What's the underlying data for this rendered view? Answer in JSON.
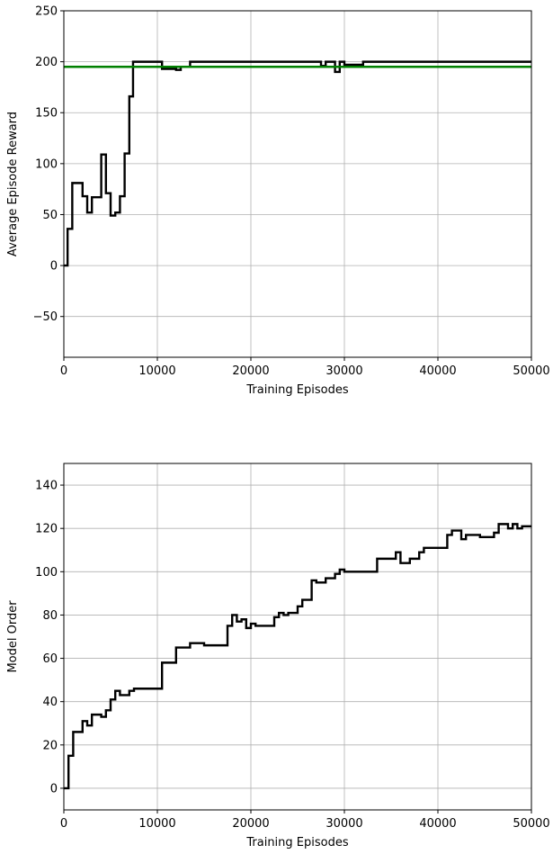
{
  "chart_data": [
    {
      "type": "line",
      "xlabel": "Training Episodes",
      "ylabel": "Average Episode Reward",
      "xlim": [
        0,
        50000
      ],
      "ylim": [
        -90,
        250
      ],
      "x_ticks": [
        0,
        10000,
        20000,
        30000,
        40000,
        50000
      ],
      "y_ticks": [
        -50,
        0,
        50,
        100,
        150,
        200,
        250
      ],
      "grid": true,
      "series": [
        {
          "style": "step",
          "color": "#000000",
          "points": [
            [
              0,
              0
            ],
            [
              400,
              0
            ],
            [
              400,
              36
            ],
            [
              900,
              36
            ],
            [
              900,
              81
            ],
            [
              2000,
              81
            ],
            [
              2000,
              68
            ],
            [
              2500,
              68
            ],
            [
              2500,
              52
            ],
            [
              3000,
              52
            ],
            [
              3000,
              67
            ],
            [
              4000,
              67
            ],
            [
              4000,
              109
            ],
            [
              4500,
              109
            ],
            [
              4500,
              71
            ],
            [
              5000,
              71
            ],
            [
              5000,
              49
            ],
            [
              5500,
              49
            ],
            [
              5500,
              52
            ],
            [
              6000,
              52
            ],
            [
              6000,
              68
            ],
            [
              6500,
              68
            ],
            [
              6500,
              110
            ],
            [
              7000,
              110
            ],
            [
              7000,
              166
            ],
            [
              7400,
              166
            ],
            [
              7400,
              200
            ],
            [
              10500,
              200
            ],
            [
              10500,
              193
            ],
            [
              12000,
              193
            ],
            [
              12000,
              192
            ],
            [
              12500,
              192
            ],
            [
              12500,
              195
            ],
            [
              13500,
              195
            ],
            [
              13500,
              200
            ],
            [
              27500,
              200
            ],
            [
              27500,
              196
            ],
            [
              28000,
              196
            ],
            [
              28000,
              200
            ],
            [
              29000,
              200
            ],
            [
              29000,
              190
            ],
            [
              29500,
              190
            ],
            [
              29500,
              200
            ],
            [
              30000,
              200
            ],
            [
              30000,
              197
            ],
            [
              32000,
              197
            ],
            [
              32000,
              200
            ],
            [
              50000,
              200
            ]
          ]
        },
        {
          "style": "reference",
          "color": "#008000",
          "y": 195
        }
      ]
    },
    {
      "type": "line",
      "xlabel": "Training Episodes",
      "ylabel": "Model Order",
      "xlim": [
        0,
        50000
      ],
      "ylim": [
        -10,
        150
      ],
      "x_ticks": [
        0,
        10000,
        20000,
        30000,
        40000,
        50000
      ],
      "y_ticks": [
        0,
        20,
        40,
        60,
        80,
        100,
        120,
        140
      ],
      "grid": true,
      "series": [
        {
          "style": "step",
          "color": "#000000",
          "points": [
            [
              0,
              0
            ],
            [
              500,
              0
            ],
            [
              500,
              15
            ],
            [
              1000,
              15
            ],
            [
              1000,
              26
            ],
            [
              2000,
              26
            ],
            [
              2000,
              31
            ],
            [
              2500,
              31
            ],
            [
              2500,
              29
            ],
            [
              3000,
              29
            ],
            [
              3000,
              34
            ],
            [
              4000,
              34
            ],
            [
              4000,
              33
            ],
            [
              4500,
              33
            ],
            [
              4500,
              36
            ],
            [
              5000,
              36
            ],
            [
              5000,
              41
            ],
            [
              5500,
              41
            ],
            [
              5500,
              45
            ],
            [
              6000,
              45
            ],
            [
              6000,
              43
            ],
            [
              7000,
              43
            ],
            [
              7000,
              45
            ],
            [
              7500,
              45
            ],
            [
              7500,
              46
            ],
            [
              10500,
              46
            ],
            [
              10500,
              58
            ],
            [
              12000,
              58
            ],
            [
              12000,
              65
            ],
            [
              13500,
              65
            ],
            [
              13500,
              67
            ],
            [
              15000,
              67
            ],
            [
              15000,
              66
            ],
            [
              17500,
              66
            ],
            [
              17500,
              75
            ],
            [
              18000,
              75
            ],
            [
              18000,
              80
            ],
            [
              18500,
              80
            ],
            [
              18500,
              77
            ],
            [
              19000,
              77
            ],
            [
              19000,
              78
            ],
            [
              19500,
              78
            ],
            [
              19500,
              74
            ],
            [
              20000,
              74
            ],
            [
              20000,
              76
            ],
            [
              20500,
              76
            ],
            [
              20500,
              75
            ],
            [
              22500,
              75
            ],
            [
              22500,
              79
            ],
            [
              23000,
              79
            ],
            [
              23000,
              81
            ],
            [
              23500,
              81
            ],
            [
              23500,
              80
            ],
            [
              24000,
              80
            ],
            [
              24000,
              81
            ],
            [
              25000,
              81
            ],
            [
              25000,
              84
            ],
            [
              25500,
              84
            ],
            [
              25500,
              87
            ],
            [
              26500,
              87
            ],
            [
              26500,
              96
            ],
            [
              27000,
              96
            ],
            [
              27000,
              95
            ],
            [
              28000,
              95
            ],
            [
              28000,
              97
            ],
            [
              29000,
              97
            ],
            [
              29000,
              99
            ],
            [
              29500,
              99
            ],
            [
              29500,
              101
            ],
            [
              30000,
              101
            ],
            [
              30000,
              100
            ],
            [
              33500,
              100
            ],
            [
              33500,
              106
            ],
            [
              35500,
              106
            ],
            [
              35500,
              109
            ],
            [
              36000,
              109
            ],
            [
              36000,
              104
            ],
            [
              37000,
              104
            ],
            [
              37000,
              106
            ],
            [
              38000,
              106
            ],
            [
              38000,
              109
            ],
            [
              38500,
              109
            ],
            [
              38500,
              111
            ],
            [
              41000,
              111
            ],
            [
              41000,
              117
            ],
            [
              41500,
              117
            ],
            [
              41500,
              119
            ],
            [
              42500,
              119
            ],
            [
              42500,
              115
            ],
            [
              43000,
              115
            ],
            [
              43000,
              117
            ],
            [
              44500,
              117
            ],
            [
              44500,
              116
            ],
            [
              46000,
              116
            ],
            [
              46000,
              118
            ],
            [
              46500,
              118
            ],
            [
              46500,
              122
            ],
            [
              47500,
              122
            ],
            [
              47500,
              120
            ],
            [
              48000,
              120
            ],
            [
              48000,
              122
            ],
            [
              48500,
              122
            ],
            [
              48500,
              120
            ],
            [
              49000,
              120
            ],
            [
              49000,
              121
            ],
            [
              50000,
              121
            ]
          ]
        }
      ]
    }
  ]
}
